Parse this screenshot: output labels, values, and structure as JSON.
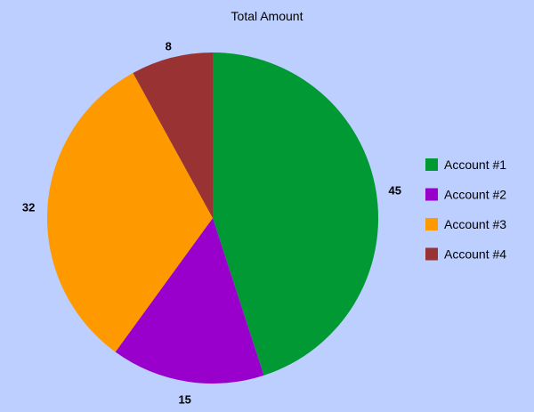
{
  "chart_data": {
    "type": "pie",
    "title": "Total Amount",
    "categories": [
      "Account #1",
      "Account #2",
      "Account #3",
      "Account #4"
    ],
    "values": [
      45,
      15,
      32,
      8
    ],
    "colors": [
      "#009933",
      "#9900cc",
      "#ff9900",
      "#993333"
    ],
    "legend_position": "right",
    "start_angle": "12 o'clock",
    "direction": "clockwise"
  }
}
